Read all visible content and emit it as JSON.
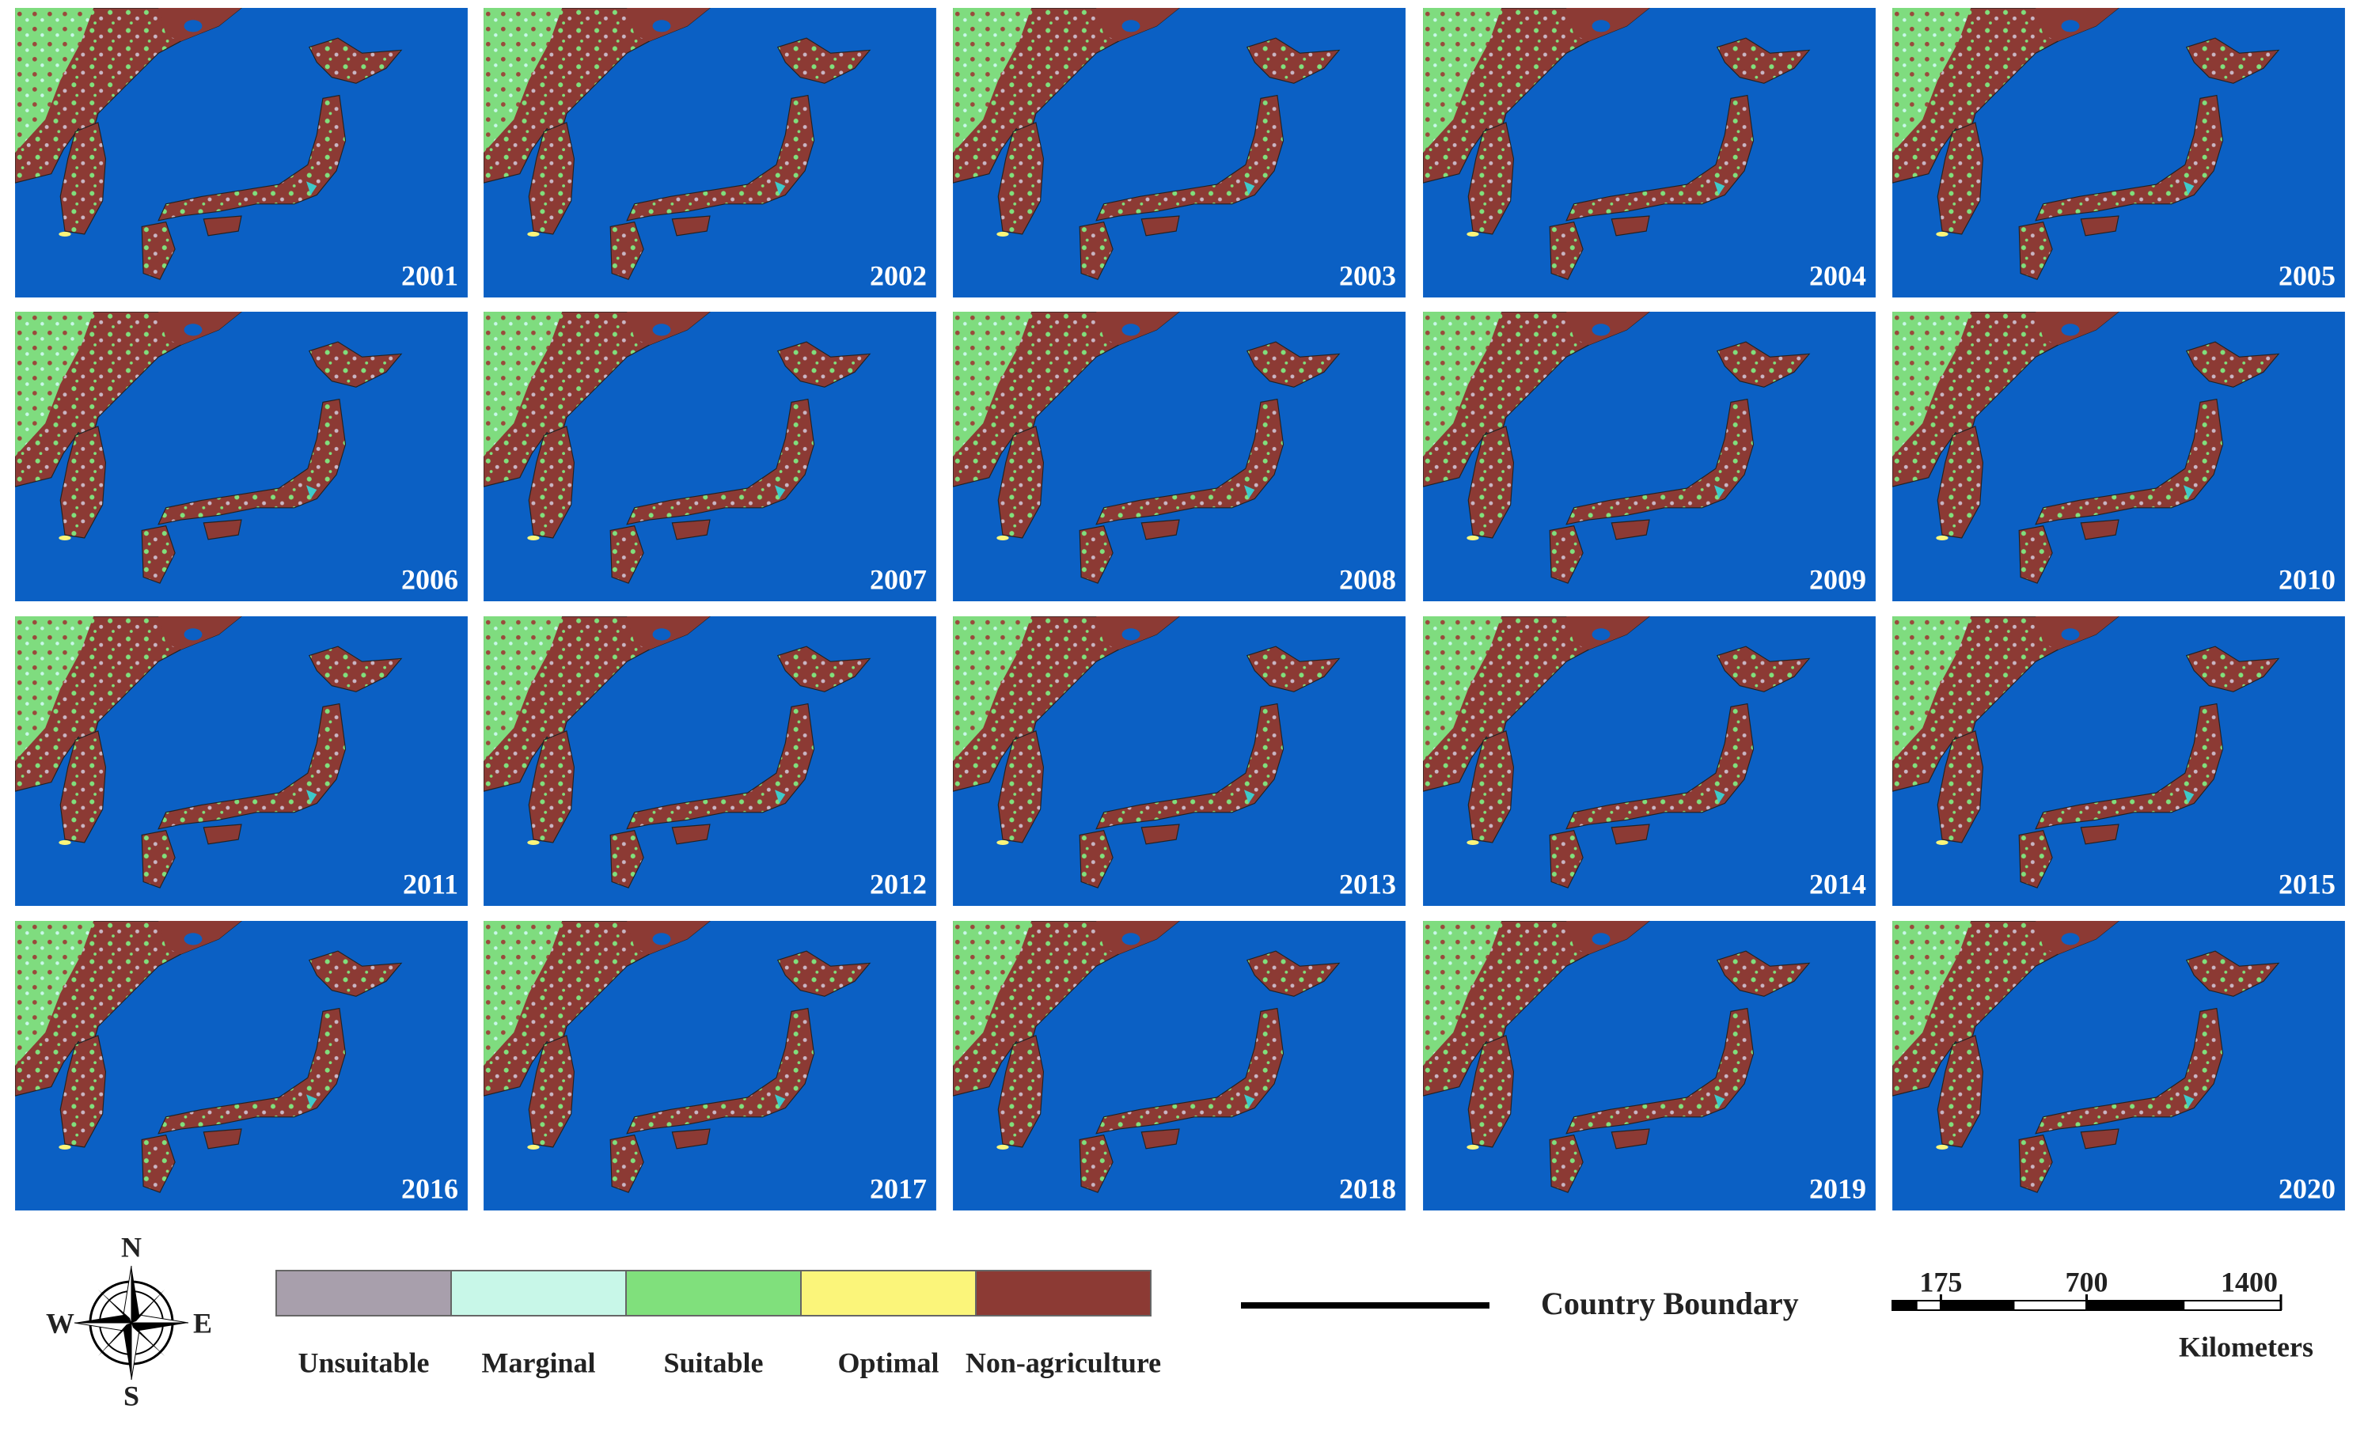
{
  "panels": {
    "years": [
      "2001",
      "2002",
      "2003",
      "2004",
      "2005",
      "2006",
      "2007",
      "2008",
      "2009",
      "2010",
      "2011",
      "2012",
      "2013",
      "2014",
      "2015",
      "2016",
      "2017",
      "2018",
      "2019",
      "2020"
    ]
  },
  "legend": {
    "items": [
      {
        "label": "Unsuitable",
        "color": "#a89fac"
      },
      {
        "label": "Marginal",
        "color": "#c8f7e8"
      },
      {
        "label": "Suitable",
        "color": "#80e07c"
      },
      {
        "label": "Optimal",
        "color": "#fbf57a"
      },
      {
        "label": "Non-agriculture",
        "color": "#8c3a34"
      }
    ]
  },
  "compass": {
    "n": "N",
    "e": "E",
    "s": "S",
    "w": "W"
  },
  "boundary_label": "Country Boundary",
  "scale_bar": {
    "ticks": [
      175,
      700,
      1400
    ],
    "unit": "Kilometers"
  }
}
